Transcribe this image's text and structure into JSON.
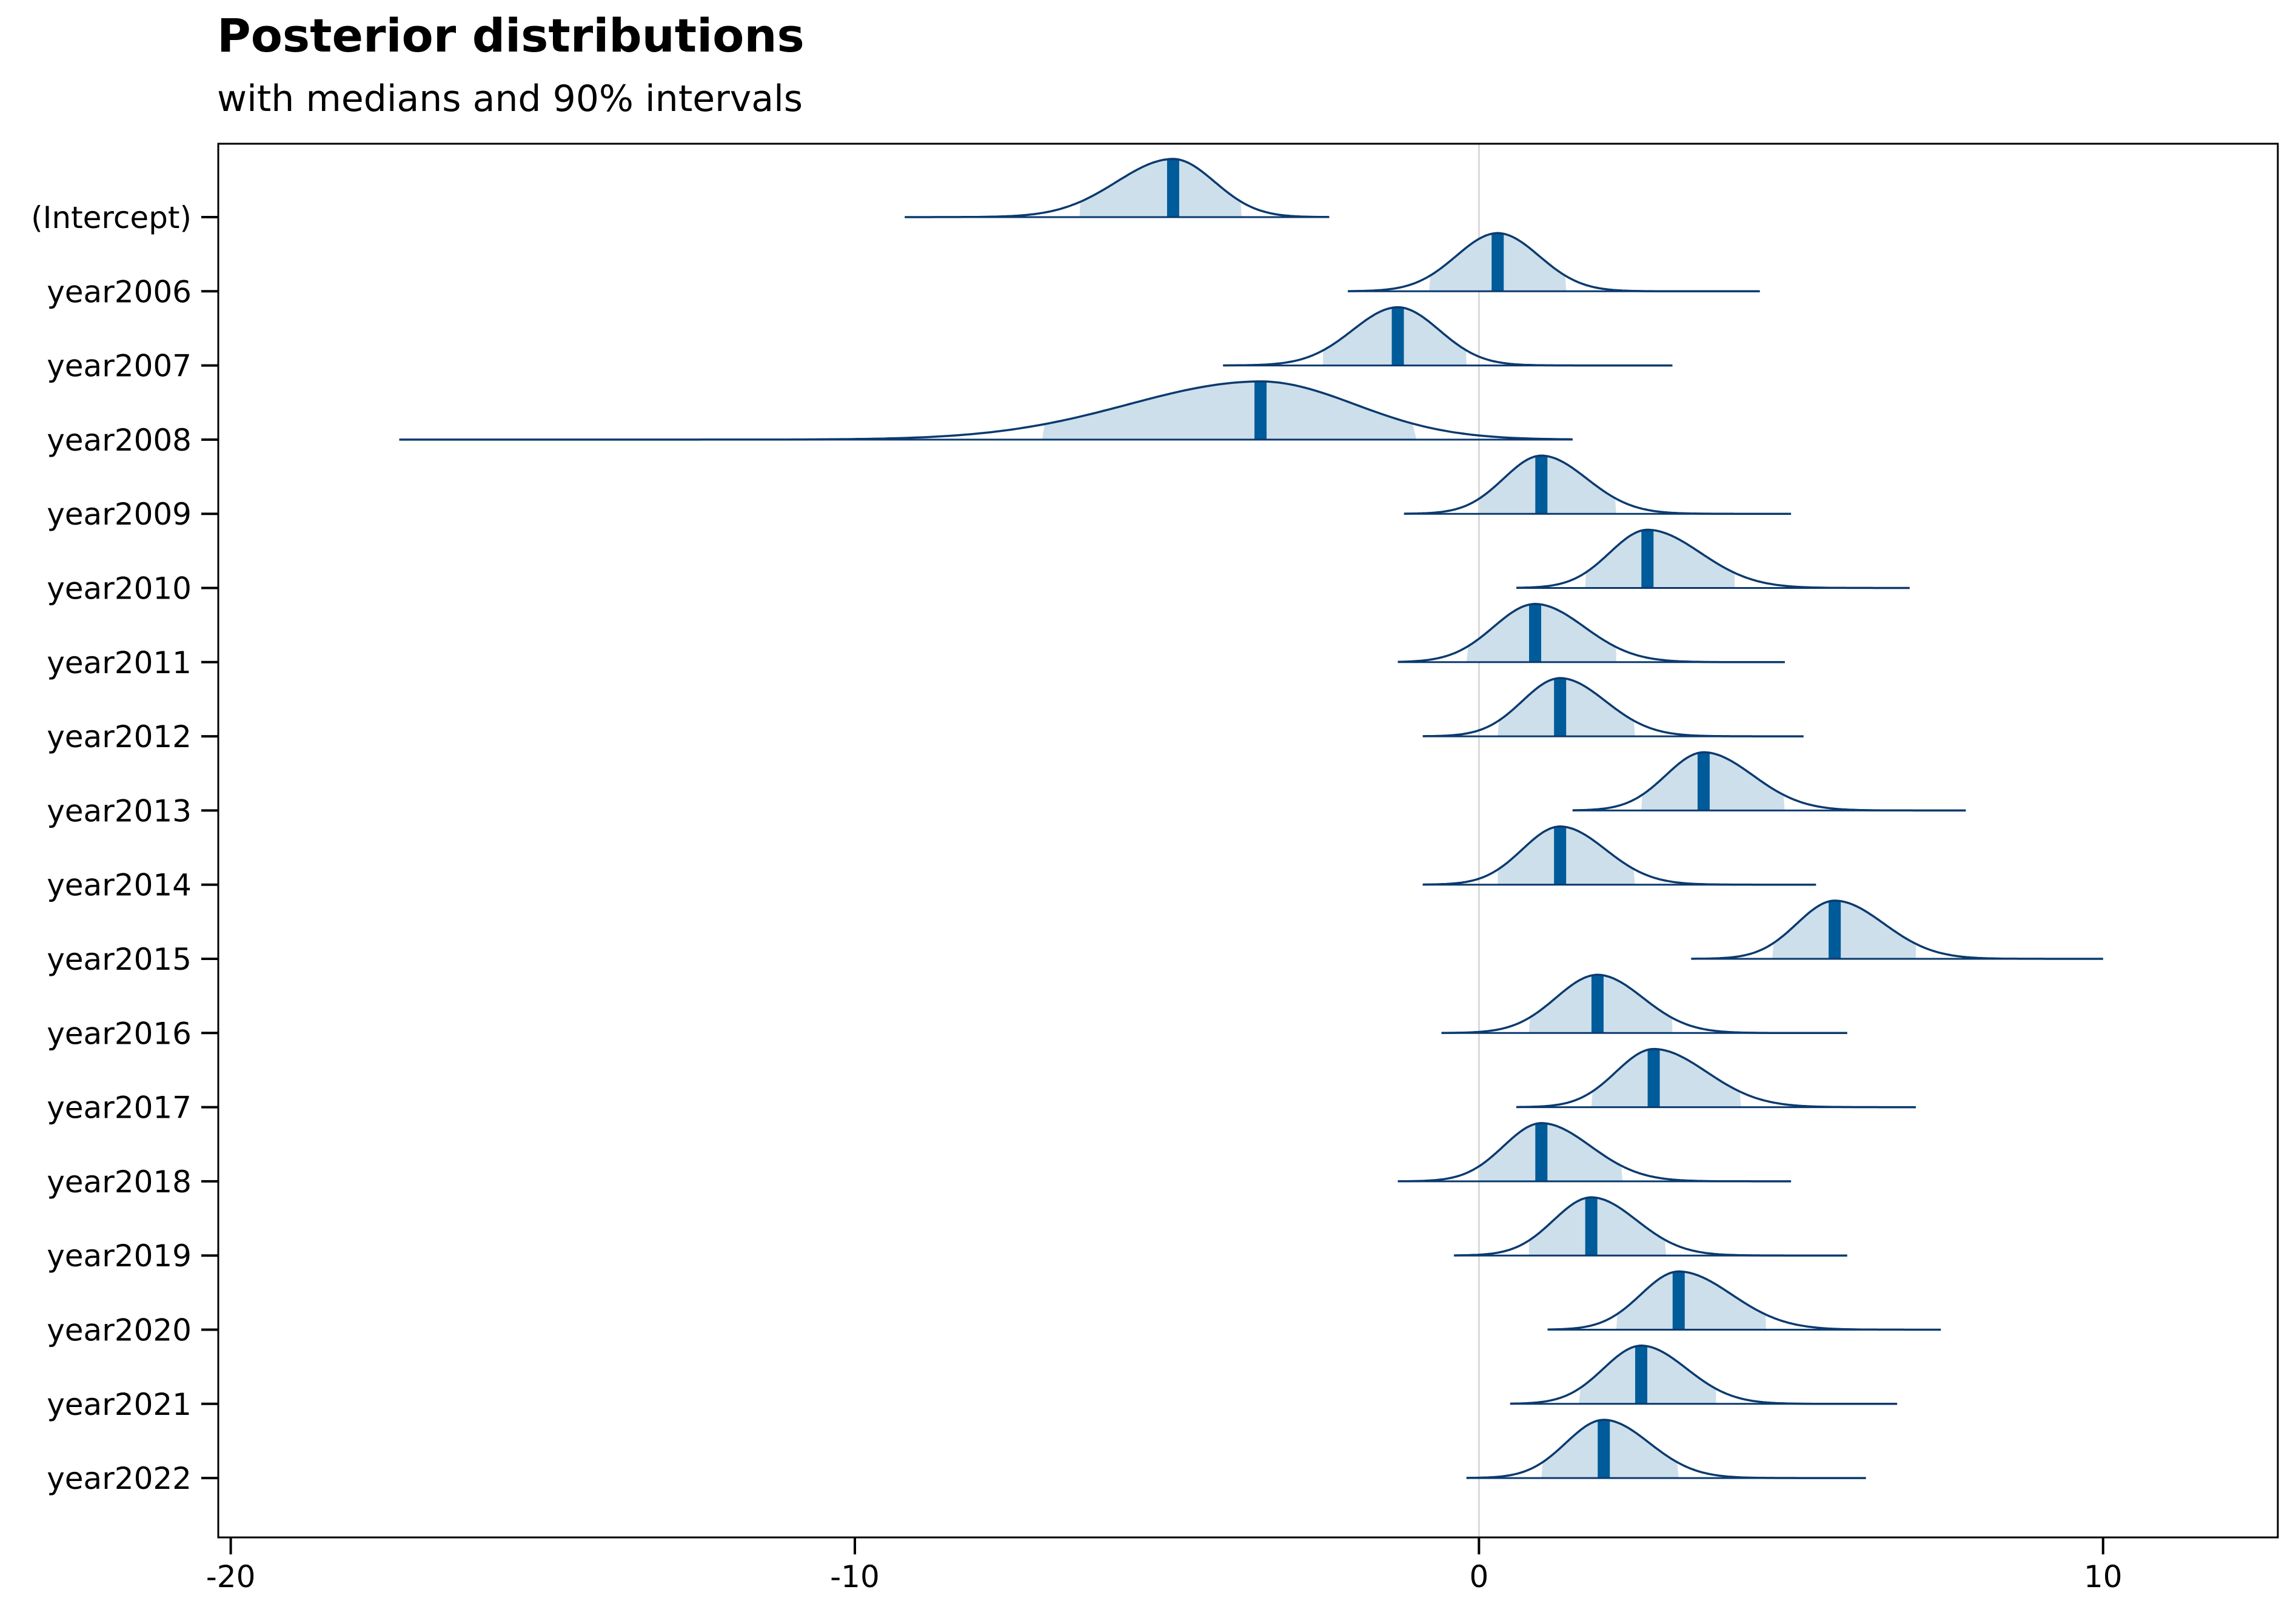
{
  "chart_data": {
    "type": "ridgeline",
    "title": "Posterior distributions",
    "subtitle": "with medians and 90% intervals",
    "xlim": [
      -20.2,
      12.8
    ],
    "x_ticks": [
      -20,
      -10,
      0,
      10
    ],
    "x_tick_labels": [
      "-20",
      "-10",
      "0",
      "10"
    ],
    "reference_line_x": 0,
    "grid": false,
    "colors": {
      "fill": "#cddfeb",
      "outline": "#0b3a6e",
      "median": "#005b9a",
      "reference": "#d9d9d9"
    },
    "categories": [
      "(Intercept)",
      "year2006",
      "year2007",
      "year2008",
      "year2009",
      "year2010",
      "year2011",
      "year2012",
      "year2013",
      "year2014",
      "year2015",
      "year2016",
      "year2017",
      "year2018",
      "year2019",
      "year2020",
      "year2021",
      "year2022"
    ],
    "series": [
      {
        "label": "(Intercept)",
        "median": -4.9,
        "ci90": [
          -6.4,
          -3.8
        ],
        "min": -9.2,
        "max": -2.4
      },
      {
        "label": "year2006",
        "median": 0.3,
        "ci90": [
          -0.8,
          1.4
        ],
        "min": -2.1,
        "max": 4.5
      },
      {
        "label": "year2007",
        "median": -1.3,
        "ci90": [
          -2.5,
          -0.2
        ],
        "min": -4.1,
        "max": 3.1
      },
      {
        "label": "year2008",
        "median": -3.5,
        "ci90": [
          -7.0,
          -1.0
        ],
        "min": -17.3,
        "max": 1.5
      },
      {
        "label": "year2009",
        "median": 1.0,
        "ci90": [
          0.0,
          2.2
        ],
        "min": -1.2,
        "max": 5.0
      },
      {
        "label": "year2010",
        "median": 2.7,
        "ci90": [
          1.7,
          4.1
        ],
        "min": 0.6,
        "max": 6.9
      },
      {
        "label": "year2011",
        "median": 0.9,
        "ci90": [
          -0.2,
          2.2
        ],
        "min": -1.3,
        "max": 4.9
      },
      {
        "label": "year2012",
        "median": 1.3,
        "ci90": [
          0.3,
          2.5
        ],
        "min": -0.9,
        "max": 5.2
      },
      {
        "label": "year2013",
        "median": 3.6,
        "ci90": [
          2.6,
          4.9
        ],
        "min": 1.5,
        "max": 7.8
      },
      {
        "label": "year2014",
        "median": 1.3,
        "ci90": [
          0.3,
          2.5
        ],
        "min": -0.9,
        "max": 5.4
      },
      {
        "label": "year2015",
        "median": 5.7,
        "ci90": [
          4.7,
          7.0
        ],
        "min": 3.4,
        "max": 10.0
      },
      {
        "label": "year2016",
        "median": 1.9,
        "ci90": [
          0.8,
          3.1
        ],
        "min": -0.6,
        "max": 5.9
      },
      {
        "label": "year2017",
        "median": 2.8,
        "ci90": [
          1.8,
          4.2
        ],
        "min": 0.6,
        "max": 7.0
      },
      {
        "label": "year2018",
        "median": 1.0,
        "ci90": [
          0.0,
          2.3
        ],
        "min": -1.3,
        "max": 5.0
      },
      {
        "label": "year2019",
        "median": 1.8,
        "ci90": [
          0.8,
          3.0
        ],
        "min": -0.4,
        "max": 5.9
      },
      {
        "label": "year2020",
        "median": 3.2,
        "ci90": [
          2.2,
          4.6
        ],
        "min": 1.1,
        "max": 7.4
      },
      {
        "label": "year2021",
        "median": 2.6,
        "ci90": [
          1.6,
          3.8
        ],
        "min": 0.5,
        "max": 6.7
      },
      {
        "label": "year2022",
        "median": 2.0,
        "ci90": [
          1.0,
          3.2
        ],
        "min": -0.2,
        "max": 6.2
      }
    ]
  }
}
